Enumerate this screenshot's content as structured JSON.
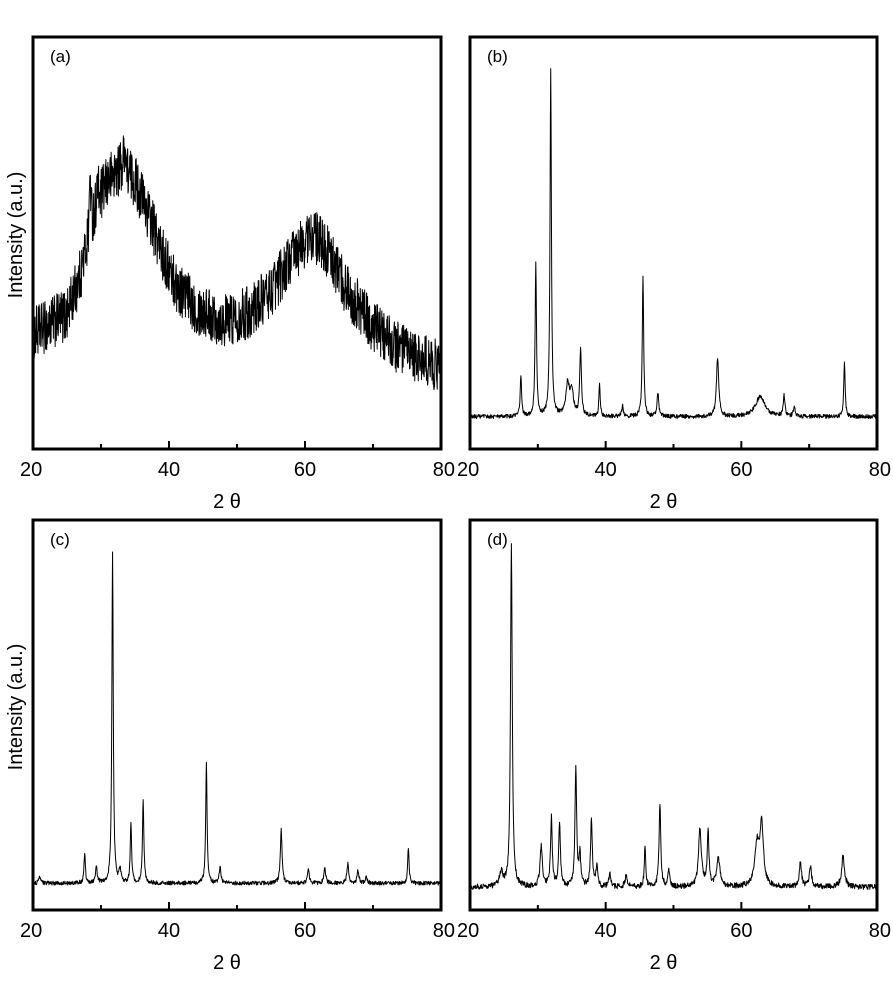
{
  "figure": {
    "panels": [
      {
        "id": "a",
        "label": "(a)",
        "xlabel": "2 θ",
        "ylabel": "Intensity (a.u.)",
        "xticks": [
          "20",
          "40",
          "60",
          "80"
        ]
      },
      {
        "id": "b",
        "label": "(b)",
        "xlabel": "2 θ",
        "ylabel": "",
        "xticks": [
          "20",
          "40",
          "60",
          "80"
        ]
      },
      {
        "id": "c",
        "label": "(c)",
        "xlabel": "2 θ",
        "ylabel": "Intensity (a.u.)",
        "xticks": [
          "20",
          "40",
          "60",
          "80"
        ]
      },
      {
        "id": "d",
        "label": "(d)",
        "xlabel": "2 θ",
        "ylabel": "",
        "xticks": [
          "20",
          "40",
          "60",
          "80"
        ]
      }
    ]
  },
  "chart_data": [
    {
      "type": "line",
      "title": "(a)",
      "xlabel": "2 θ",
      "ylabel": "Intensity (a.u.)",
      "xlim": [
        20,
        80
      ],
      "ylim": [
        0,
        100
      ],
      "grid": false,
      "noise_amplitude": 8,
      "baseline": [
        [
          20,
          22
        ],
        [
          25,
          28
        ],
        [
          27,
          40
        ],
        [
          29,
          58
        ],
        [
          31,
          68
        ],
        [
          33,
          72
        ],
        [
          35,
          68
        ],
        [
          37,
          58
        ],
        [
          39,
          46
        ],
        [
          41,
          37
        ],
        [
          44,
          30
        ],
        [
          48,
          26
        ],
        [
          52,
          29
        ],
        [
          55,
          35
        ],
        [
          58,
          45
        ],
        [
          61,
          52
        ],
        [
          63,
          48
        ],
        [
          66,
          36
        ],
        [
          70,
          24
        ],
        [
          75,
          16
        ],
        [
          80,
          12
        ]
      ],
      "peaks": [
        {
          "x": 28.4,
          "h": 18,
          "w": 0.12
        },
        {
          "x": 33.5,
          "h": 8,
          "w": 0.15
        },
        {
          "x": 29.5,
          "h": 6,
          "w": 0.15
        }
      ]
    },
    {
      "type": "line",
      "title": "(b)",
      "xlabel": "2 θ",
      "ylabel": "",
      "xlim": [
        20,
        80
      ],
      "ylim": [
        0,
        100
      ],
      "grid": false,
      "noise_amplitude": 0.6,
      "baseline": [
        [
          20,
          1
        ],
        [
          80,
          1
        ]
      ],
      "peaks": [
        {
          "x": 27.5,
          "h": 12,
          "w": 0.12
        },
        {
          "x": 29.7,
          "h": 44,
          "w": 0.12
        },
        {
          "x": 31.9,
          "h": 100,
          "w": 0.12
        },
        {
          "x": 34.4,
          "h": 9,
          "w": 0.3
        },
        {
          "x": 35.0,
          "h": 7,
          "w": 0.3
        },
        {
          "x": 36.3,
          "h": 19,
          "w": 0.15
        },
        {
          "x": 39.1,
          "h": 9,
          "w": 0.12
        },
        {
          "x": 42.5,
          "h": 3,
          "w": 0.15
        },
        {
          "x": 45.5,
          "h": 41,
          "w": 0.12
        },
        {
          "x": 47.7,
          "h": 7,
          "w": 0.15
        },
        {
          "x": 56.5,
          "h": 17,
          "w": 0.2
        },
        {
          "x": 62.8,
          "h": 6,
          "w": 0.8
        },
        {
          "x": 66.3,
          "h": 6,
          "w": 0.15
        },
        {
          "x": 67.8,
          "h": 3,
          "w": 0.15
        },
        {
          "x": 75.2,
          "h": 16,
          "w": 0.12
        }
      ]
    },
    {
      "type": "line",
      "title": "(c)",
      "xlabel": "2 θ",
      "ylabel": "Intensity (a.u.)",
      "xlim": [
        20,
        80
      ],
      "ylim": [
        0,
        100
      ],
      "grid": false,
      "noise_amplitude": 0.6,
      "baseline": [
        [
          20,
          1
        ],
        [
          80,
          1
        ]
      ],
      "peaks": [
        {
          "x": 21.0,
          "h": 2,
          "w": 0.15
        },
        {
          "x": 27.6,
          "h": 9,
          "w": 0.12
        },
        {
          "x": 29.3,
          "h": 5,
          "w": 0.15
        },
        {
          "x": 31.7,
          "h": 100,
          "w": 0.12
        },
        {
          "x": 32.8,
          "h": 4,
          "w": 0.15
        },
        {
          "x": 34.4,
          "h": 18,
          "w": 0.12
        },
        {
          "x": 36.2,
          "h": 25,
          "w": 0.12
        },
        {
          "x": 45.5,
          "h": 36,
          "w": 0.12
        },
        {
          "x": 47.5,
          "h": 5,
          "w": 0.15
        },
        {
          "x": 56.5,
          "h": 16,
          "w": 0.15
        },
        {
          "x": 60.5,
          "h": 4,
          "w": 0.15
        },
        {
          "x": 62.9,
          "h": 5,
          "w": 0.15
        },
        {
          "x": 66.3,
          "h": 6,
          "w": 0.15
        },
        {
          "x": 67.8,
          "h": 4,
          "w": 0.15
        },
        {
          "x": 69.0,
          "h": 2,
          "w": 0.15
        },
        {
          "x": 75.2,
          "h": 11,
          "w": 0.12
        }
      ]
    },
    {
      "type": "line",
      "title": "(d)",
      "xlabel": "2 θ",
      "ylabel": "",
      "xlim": [
        20,
        80
      ],
      "ylim": [
        0,
        100
      ],
      "grid": false,
      "noise_amplitude": 0.8,
      "baseline": [
        [
          20,
          1
        ],
        [
          80,
          1
        ]
      ],
      "peaks": [
        {
          "x": 24.6,
          "h": 4,
          "w": 0.3
        },
        {
          "x": 26.1,
          "h": 100,
          "w": 0.15
        },
        {
          "x": 30.5,
          "h": 12,
          "w": 0.2
        },
        {
          "x": 32.0,
          "h": 20,
          "w": 0.15
        },
        {
          "x": 33.2,
          "h": 18,
          "w": 0.15
        },
        {
          "x": 35.6,
          "h": 34,
          "w": 0.15
        },
        {
          "x": 36.2,
          "h": 9,
          "w": 0.15
        },
        {
          "x": 37.9,
          "h": 20,
          "w": 0.15
        },
        {
          "x": 38.7,
          "h": 6,
          "w": 0.15
        },
        {
          "x": 40.6,
          "h": 4,
          "w": 0.15
        },
        {
          "x": 43.0,
          "h": 3,
          "w": 0.2
        },
        {
          "x": 45.8,
          "h": 12,
          "w": 0.12
        },
        {
          "x": 48.0,
          "h": 24,
          "w": 0.15
        },
        {
          "x": 49.3,
          "h": 5,
          "w": 0.15
        },
        {
          "x": 53.9,
          "h": 17,
          "w": 0.25
        },
        {
          "x": 55.1,
          "h": 16,
          "w": 0.15
        },
        {
          "x": 56.6,
          "h": 8,
          "w": 0.3
        },
        {
          "x": 62.3,
          "h": 12,
          "w": 0.4
        },
        {
          "x": 63.0,
          "h": 17,
          "w": 0.3
        },
        {
          "x": 68.7,
          "h": 7,
          "w": 0.2
        },
        {
          "x": 70.2,
          "h": 6,
          "w": 0.2
        },
        {
          "x": 75.0,
          "h": 9,
          "w": 0.25
        }
      ]
    }
  ]
}
